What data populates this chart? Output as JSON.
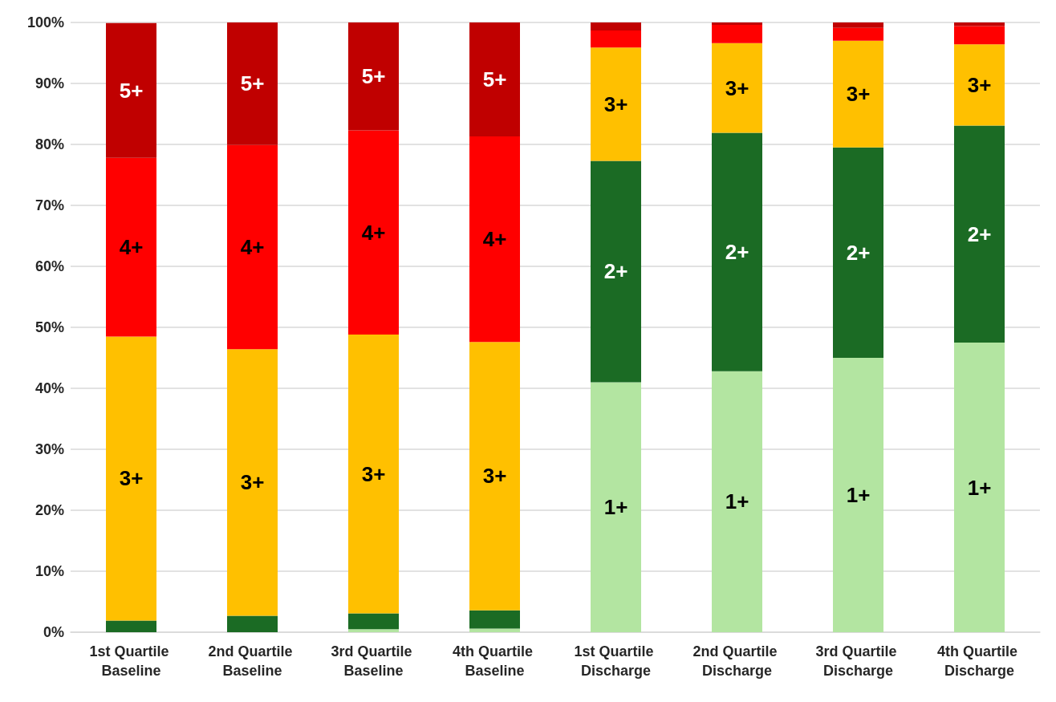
{
  "chart_data": {
    "type": "bar",
    "stacked": true,
    "categories": [
      "1st Quartile Baseline",
      "2nd Quartile Baseline",
      "3rd Quartile Baseline",
      "4th Quartile Baseline",
      "1st Quartile Discharge",
      "2nd Quartile Discharge",
      "3rd Quartile Discharge",
      "4th Quartile Discharge"
    ],
    "ylim": [
      0,
      100
    ],
    "yticks": [
      {
        "value": 0,
        "label": "0%"
      },
      {
        "value": 10,
        "label": "10%"
      },
      {
        "value": 20,
        "label": "20%"
      },
      {
        "value": 30,
        "label": "30%"
      },
      {
        "value": 40,
        "label": "40%"
      },
      {
        "value": 50,
        "label": "50%"
      },
      {
        "value": 60,
        "label": "60%"
      },
      {
        "value": 70,
        "label": "70%"
      },
      {
        "value": 80,
        "label": "80%"
      },
      {
        "value": 90,
        "label": "90%"
      },
      {
        "value": 100,
        "label": "100%"
      }
    ],
    "grid": "y",
    "legend": false,
    "series": [
      {
        "color": "#b3e5a1",
        "values": [
          null,
          null,
          0.5,
          0.6,
          41.0,
          42.8,
          45.0,
          47.5
        ],
        "value_labels": [
          null,
          null,
          null,
          null,
          "1+",
          "1+",
          "1+",
          "1+"
        ]
      },
      {
        "color": "#1b6b24",
        "values": [
          1.9,
          2.7,
          2.6,
          3.0,
          36.3,
          39.1,
          34.5,
          35.6
        ],
        "value_labels": [
          null,
          null,
          null,
          null,
          "2+",
          "2+",
          "2+",
          "2+"
        ]
      },
      {
        "color": "#ffc000",
        "values": [
          46.6,
          43.7,
          45.7,
          44.0,
          18.6,
          14.7,
          17.5,
          13.3
        ],
        "value_labels": [
          "3+",
          "3+",
          "3+",
          "3+",
          "3+",
          "3+",
          "3+",
          "3+"
        ]
      },
      {
        "color": "#ff0000",
        "values": [
          29.3,
          33.5,
          33.5,
          33.7,
          2.8,
          3.0,
          2.1,
          3.0
        ],
        "value_labels": [
          "4+",
          "4+",
          "4+",
          "4+",
          null,
          null,
          null,
          null
        ]
      },
      {
        "color": "#c00000",
        "values": [
          22.1,
          20.1,
          17.7,
          18.7,
          1.3,
          0.4,
          0.9,
          0.6
        ],
        "value_labels": [
          "5+",
          "5+",
          "5+",
          "5+",
          null,
          null,
          null,
          null
        ]
      }
    ]
  }
}
